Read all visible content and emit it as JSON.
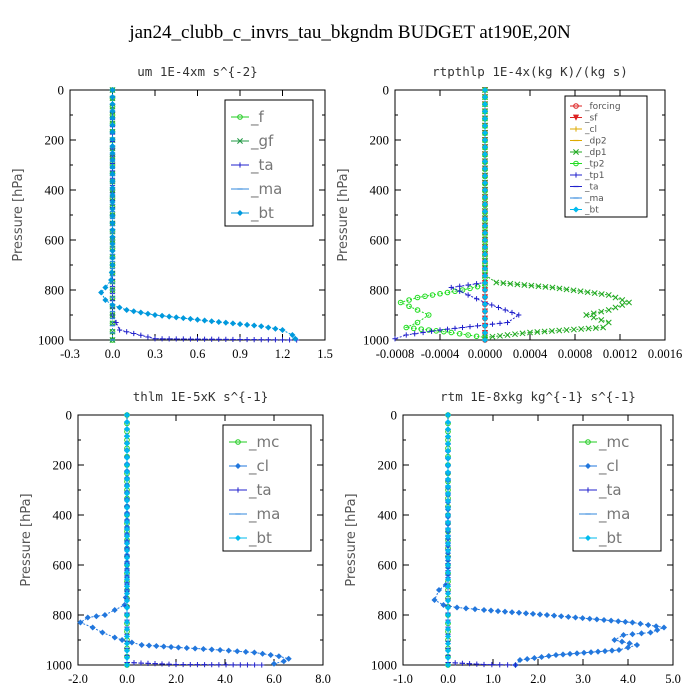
{
  "title": "jan24_clubb_c_invrs_tau_bkgndm  BUDGET at190E,20N",
  "chart_data": [
    {
      "type": "line",
      "title": "um  1E-4xm s^{-2}",
      "ylabel": "Pressure [hPa]",
      "xlim": [
        -0.3,
        1.5
      ],
      "ylim": [
        0,
        1000
      ],
      "xticks": [
        "-0.3",
        "0.0",
        "0.3",
        "0.6",
        "0.9",
        "1.2",
        "1.5"
      ],
      "xtick_values": [
        -0.3,
        0.0,
        0.3,
        0.6,
        0.9,
        1.2,
        1.5
      ],
      "yticks": [
        "0",
        "200",
        "400",
        "600",
        "800",
        "1000"
      ],
      "ytick_values": [
        0,
        200,
        400,
        600,
        800,
        1000
      ],
      "legend_position": "top-right",
      "legend_small": false,
      "series": [
        {
          "name": "_f",
          "color": "#22cc22",
          "marker": "circle",
          "points": [
            [
              0,
              0
            ],
            [
              0,
              100
            ],
            [
              0,
              200
            ],
            [
              0,
              300
            ],
            [
              0,
              400
            ],
            [
              0,
              500
            ],
            [
              0,
              600
            ],
            [
              0,
              700
            ],
            [
              0,
              800
            ],
            [
              0,
              900
            ],
            [
              0,
              1000
            ]
          ]
        },
        {
          "name": "_gf",
          "color": "#229944",
          "marker": "x",
          "points": [
            [
              0,
              0
            ],
            [
              0,
              100
            ],
            [
              0,
              200
            ],
            [
              0,
              300
            ],
            [
              0,
              400
            ],
            [
              0,
              500
            ],
            [
              0,
              600
            ],
            [
              0,
              700
            ],
            [
              0,
              800
            ],
            [
              0,
              900
            ],
            [
              0,
              1000
            ]
          ]
        },
        {
          "name": "_ta",
          "color": "#2222cc",
          "marker": "plus",
          "points": [
            [
              0,
              0
            ],
            [
              0,
              500
            ],
            [
              0,
              900
            ],
            [
              0.05,
              960
            ],
            [
              0.3,
              995
            ],
            [
              1.3,
              1000
            ]
          ]
        },
        {
          "name": "_ma",
          "color": "#3388dd",
          "marker": "dash",
          "points": [
            [
              0,
              0
            ],
            [
              0,
              1000
            ]
          ]
        },
        {
          "name": "_bt",
          "color": "#0099dd",
          "marker": "diamond",
          "points": [
            [
              0,
              0
            ],
            [
              0,
              700
            ],
            [
              -0.01,
              760
            ],
            [
              -0.05,
              790
            ],
            [
              -0.08,
              810
            ],
            [
              -0.05,
              840
            ],
            [
              0,
              860
            ],
            [
              0.1,
              880
            ],
            [
              0.3,
              900
            ],
            [
              0.7,
              925
            ],
            [
              1.05,
              945
            ],
            [
              1.2,
              960
            ],
            [
              1.27,
              980
            ],
            [
              1.29,
              995
            ]
          ]
        }
      ]
    },
    {
      "type": "line",
      "title": "rtpthlp  1E-4x(kg K)/(kg s)",
      "ylabel": "Pressure [hPa]",
      "xlim": [
        -0.0008,
        0.0016
      ],
      "ylim": [
        0,
        1000
      ],
      "xticks": [
        "-0.0008",
        "-0.0004",
        "0.0000",
        "0.0004",
        "0.0008",
        "0.0012",
        "0.0016"
      ],
      "xtick_values": [
        -0.0008,
        -0.0004,
        0.0,
        0.0004,
        0.0008,
        0.0012,
        0.0016
      ],
      "yticks": [
        "0",
        "200",
        "400",
        "600",
        "800",
        "1000"
      ],
      "ytick_values": [
        0,
        200,
        400,
        600,
        800,
        1000
      ],
      "legend_position": "top-right",
      "legend_small": true,
      "series": [
        {
          "name": "_forcing",
          "color": "#dd2222",
          "marker": "circle",
          "points": [
            [
              0,
              0
            ],
            [
              0,
              1000
            ]
          ]
        },
        {
          "name": "_sf",
          "color": "#dd2222",
          "marker": "tri",
          "points": [
            [
              0,
              0
            ],
            [
              0,
              1000
            ]
          ]
        },
        {
          "name": "_cl",
          "color": "#ddaa00",
          "marker": "plus",
          "points": [
            [
              0,
              0
            ],
            [
              0,
              1000
            ]
          ]
        },
        {
          "name": "_dp2",
          "color": "#ddaa00",
          "marker": "dash",
          "points": [
            [
              0,
              0
            ],
            [
              0,
              1000
            ]
          ]
        },
        {
          "name": "_dp1",
          "color": "#22aa22",
          "marker": "x",
          "points": [
            [
              0,
              0
            ],
            [
              0,
              740
            ],
            [
              0.0001,
              770
            ],
            [
              0.0006,
              790
            ],
            [
              0.0011,
              820
            ],
            [
              0.00128,
              850
            ],
            [
              0.0011,
              880
            ],
            [
              0.0009,
              900
            ],
            [
              0.0011,
              930
            ],
            [
              0.00105,
              950
            ],
            [
              0.0004,
              970
            ],
            [
              0,
              990
            ]
          ]
        },
        {
          "name": "_tp2",
          "color": "#22dd22",
          "marker": "circle",
          "points": [
            [
              0,
              0
            ],
            [
              0,
              780
            ],
            [
              -0.0002,
              800
            ],
            [
              -0.0006,
              830
            ],
            [
              -0.00075,
              850
            ],
            [
              -0.0006,
              880
            ],
            [
              -0.0005,
              900
            ],
            [
              -0.0006,
              930
            ],
            [
              -0.0007,
              950
            ],
            [
              -0.0003,
              970
            ],
            [
              0,
              990
            ]
          ]
        },
        {
          "name": "_tp1",
          "color": "#2222cc",
          "marker": "plus",
          "points": [
            [
              0,
              0
            ],
            [
              0,
              770
            ],
            [
              -0.0003,
              790
            ],
            [
              -0.00015,
              820
            ],
            [
              0,
              850
            ],
            [
              0.0003,
              900
            ],
            [
              0.0002,
              930
            ],
            [
              -0.0004,
              960
            ],
            [
              -0.0007,
              980
            ],
            [
              -0.0008,
              995
            ]
          ]
        },
        {
          "name": "_ta",
          "color": "#2222cc",
          "marker": "dash",
          "points": [
            [
              0,
              0
            ],
            [
              0,
              1000
            ]
          ]
        },
        {
          "name": "_ma",
          "color": "#3388dd",
          "marker": "dash",
          "points": [
            [
              0,
              0
            ],
            [
              0,
              1000
            ]
          ]
        },
        {
          "name": "_bt",
          "color": "#00bbee",
          "marker": "diamond",
          "points": [
            [
              0,
              0
            ],
            [
              0,
              1000
            ]
          ]
        }
      ]
    },
    {
      "type": "line",
      "title": "thlm  1E-5xK s^{-1}",
      "ylabel": "Pressure [hPa]",
      "xlim": [
        -2.0,
        8.0
      ],
      "ylim": [
        0,
        1000
      ],
      "xticks": [
        "-2.0",
        "0.0",
        "2.0",
        "4.0",
        "6.0",
        "8.0"
      ],
      "xtick_values": [
        -2.0,
        0.0,
        2.0,
        4.0,
        6.0,
        8.0
      ],
      "yticks": [
        "0",
        "200",
        "400",
        "600",
        "800",
        "1000"
      ],
      "ytick_values": [
        0,
        200,
        400,
        600,
        800,
        1000
      ],
      "legend_position": "top-right",
      "legend_small": false,
      "series": [
        {
          "name": "_mc",
          "color": "#22cc22",
          "marker": "circle",
          "points": [
            [
              0,
              0
            ],
            [
              0,
              100
            ],
            [
              0,
              200
            ],
            [
              0,
              300
            ],
            [
              0,
              400
            ],
            [
              0,
              500
            ],
            [
              0,
              600
            ],
            [
              0,
              700
            ],
            [
              0,
              800
            ],
            [
              0,
              900
            ],
            [
              0,
              1000
            ]
          ]
        },
        {
          "name": "_cl",
          "color": "#2277dd",
          "marker": "diamond",
          "points": [
            [
              0,
              0
            ],
            [
              0,
              700
            ],
            [
              -0.1,
              760
            ],
            [
              -0.5,
              780
            ],
            [
              -0.9,
              800
            ],
            [
              -1.6,
              810
            ],
            [
              -1.9,
              830
            ],
            [
              -1.4,
              850
            ],
            [
              -1.0,
              870
            ],
            [
              -0.5,
              890
            ],
            [
              -0.2,
              900
            ],
            [
              0.6,
              920
            ],
            [
              2.1,
              930
            ],
            [
              3.8,
              940
            ],
            [
              5.2,
              950
            ],
            [
              6.2,
              965
            ],
            [
              6.6,
              975
            ],
            [
              6.4,
              985
            ],
            [
              6.0,
              995
            ]
          ]
        },
        {
          "name": "_ta",
          "color": "#2222cc",
          "marker": "plus",
          "points": [
            [
              0,
              0
            ],
            [
              0,
              990
            ],
            [
              2.0,
              998
            ],
            [
              5.5,
              1000
            ]
          ]
        },
        {
          "name": "_ma",
          "color": "#3388dd",
          "marker": "dash",
          "points": [
            [
              0,
              0
            ],
            [
              0,
              1000
            ]
          ]
        },
        {
          "name": "_bt",
          "color": "#00bbee",
          "marker": "diamond",
          "points": [
            [
              0,
              0
            ],
            [
              0,
              1000
            ]
          ]
        }
      ]
    },
    {
      "type": "line",
      "title": "rtm  1E-8xkg kg^{-1} s^{-1}",
      "ylabel": "Pressure [hPa]",
      "xlim": [
        -1.0,
        5.0
      ],
      "ylim": [
        0,
        1000
      ],
      "xticks": [
        "-1.0",
        "0.0",
        "1.0",
        "2.0",
        "3.0",
        "4.0",
        "5.0"
      ],
      "xtick_values": [
        -1.0,
        0.0,
        1.0,
        2.0,
        3.0,
        4.0,
        5.0
      ],
      "yticks": [
        "0",
        "200",
        "400",
        "600",
        "800",
        "1000"
      ],
      "ytick_values": [
        0,
        200,
        400,
        600,
        800,
        1000
      ],
      "legend_position": "top-right",
      "legend_small": false,
      "series": [
        {
          "name": "_mc",
          "color": "#22cc22",
          "marker": "circle",
          "points": [
            [
              0,
              0
            ],
            [
              0,
              100
            ],
            [
              0,
              200
            ],
            [
              0,
              300
            ],
            [
              0,
              400
            ],
            [
              0,
              500
            ],
            [
              0,
              600
            ],
            [
              0,
              700
            ],
            [
              0,
              800
            ],
            [
              0,
              900
            ],
            [
              0,
              1000
            ]
          ]
        },
        {
          "name": "_cl",
          "color": "#2277dd",
          "marker": "diamond",
          "points": [
            [
              0,
              0
            ],
            [
              0,
              640
            ],
            [
              -0.05,
              680
            ],
            [
              -0.2,
              700
            ],
            [
              -0.3,
              740
            ],
            [
              -0.1,
              760
            ],
            [
              0.2,
              770
            ],
            [
              0.8,
              780
            ],
            [
              2.2,
              800
            ],
            [
              4.1,
              830
            ],
            [
              4.8,
              850
            ],
            [
              4.5,
              870
            ],
            [
              3.9,
              880
            ],
            [
              3.7,
              900
            ],
            [
              4.2,
              920
            ],
            [
              3.8,
              940
            ],
            [
              2.4,
              960
            ],
            [
              1.6,
              980
            ],
            [
              1.5,
              1000
            ]
          ]
        },
        {
          "name": "_ta",
          "color": "#2222cc",
          "marker": "plus",
          "points": [
            [
              0,
              0
            ],
            [
              0,
              990
            ],
            [
              0.8,
              998
            ],
            [
              1.5,
              1000
            ]
          ]
        },
        {
          "name": "_ma",
          "color": "#3388dd",
          "marker": "dash",
          "points": [
            [
              0,
              0
            ],
            [
              0,
              1000
            ]
          ]
        },
        {
          "name": "_bt",
          "color": "#00bbee",
          "marker": "diamond",
          "points": [
            [
              0,
              0
            ],
            [
              0,
              1000
            ]
          ]
        }
      ]
    }
  ]
}
